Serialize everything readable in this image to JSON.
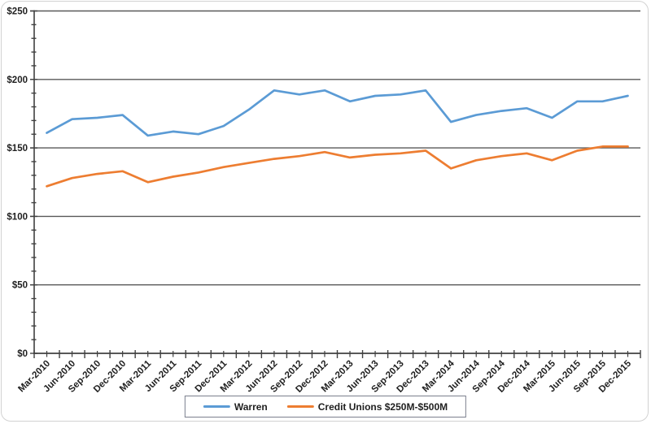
{
  "window": {
    "background_color": "#ffffff",
    "frame_border_color": "#d2d2d2"
  },
  "chart_data": {
    "type": "line",
    "title": "",
    "xlabel": "",
    "ylabel": "",
    "x_categories": [
      "Mar-2010",
      "Jun-2010",
      "Sep-2010",
      "Dec-2010",
      "Mar-2011",
      "Jun-2011",
      "Sep-2011",
      "Dec-2011",
      "Mar-2012",
      "Jun-2012",
      "Sep-2012",
      "Dec-2012",
      "Mar-2013",
      "Jun-2013",
      "Sep-2013",
      "Dec-2013",
      "Mar-2014",
      "Jun-2014",
      "Sep-2014",
      "Dec-2014",
      "Mar-2015",
      "Jun-2015",
      "Sep-2015",
      "Dec-2015"
    ],
    "series": [
      {
        "name": "Warren",
        "color": "#5B9BD5",
        "values": [
          161,
          171,
          172,
          174,
          159,
          162,
          160,
          166,
          178,
          192,
          189,
          192,
          184,
          188,
          189,
          192,
          169,
          174,
          177,
          179,
          172,
          184,
          184,
          188
        ]
      },
      {
        "name": "Credit Unions $250M-$500M",
        "color": "#ED7D31",
        "values": [
          122,
          128,
          131,
          133,
          125,
          129,
          132,
          136,
          139,
          142,
          144,
          147,
          143,
          145,
          146,
          148,
          135,
          141,
          144,
          146,
          141,
          148,
          151,
          151
        ]
      }
    ],
    "ylim": [
      0,
      250
    ],
    "y_major_interval": 50,
    "y_minor_interval": 10,
    "y_tick_labels": [
      "$0",
      "$50",
      "$100",
      "$150",
      "$200",
      "$250"
    ],
    "grid": "horizontal-major-only",
    "gridline_color": "#595959",
    "axis_color": "#404040",
    "tick_label_color": "#1f1f1f",
    "x_label_rotation_deg": -45,
    "legend_position": "bottom-center",
    "legend_border_color": "#7b7f8d"
  }
}
